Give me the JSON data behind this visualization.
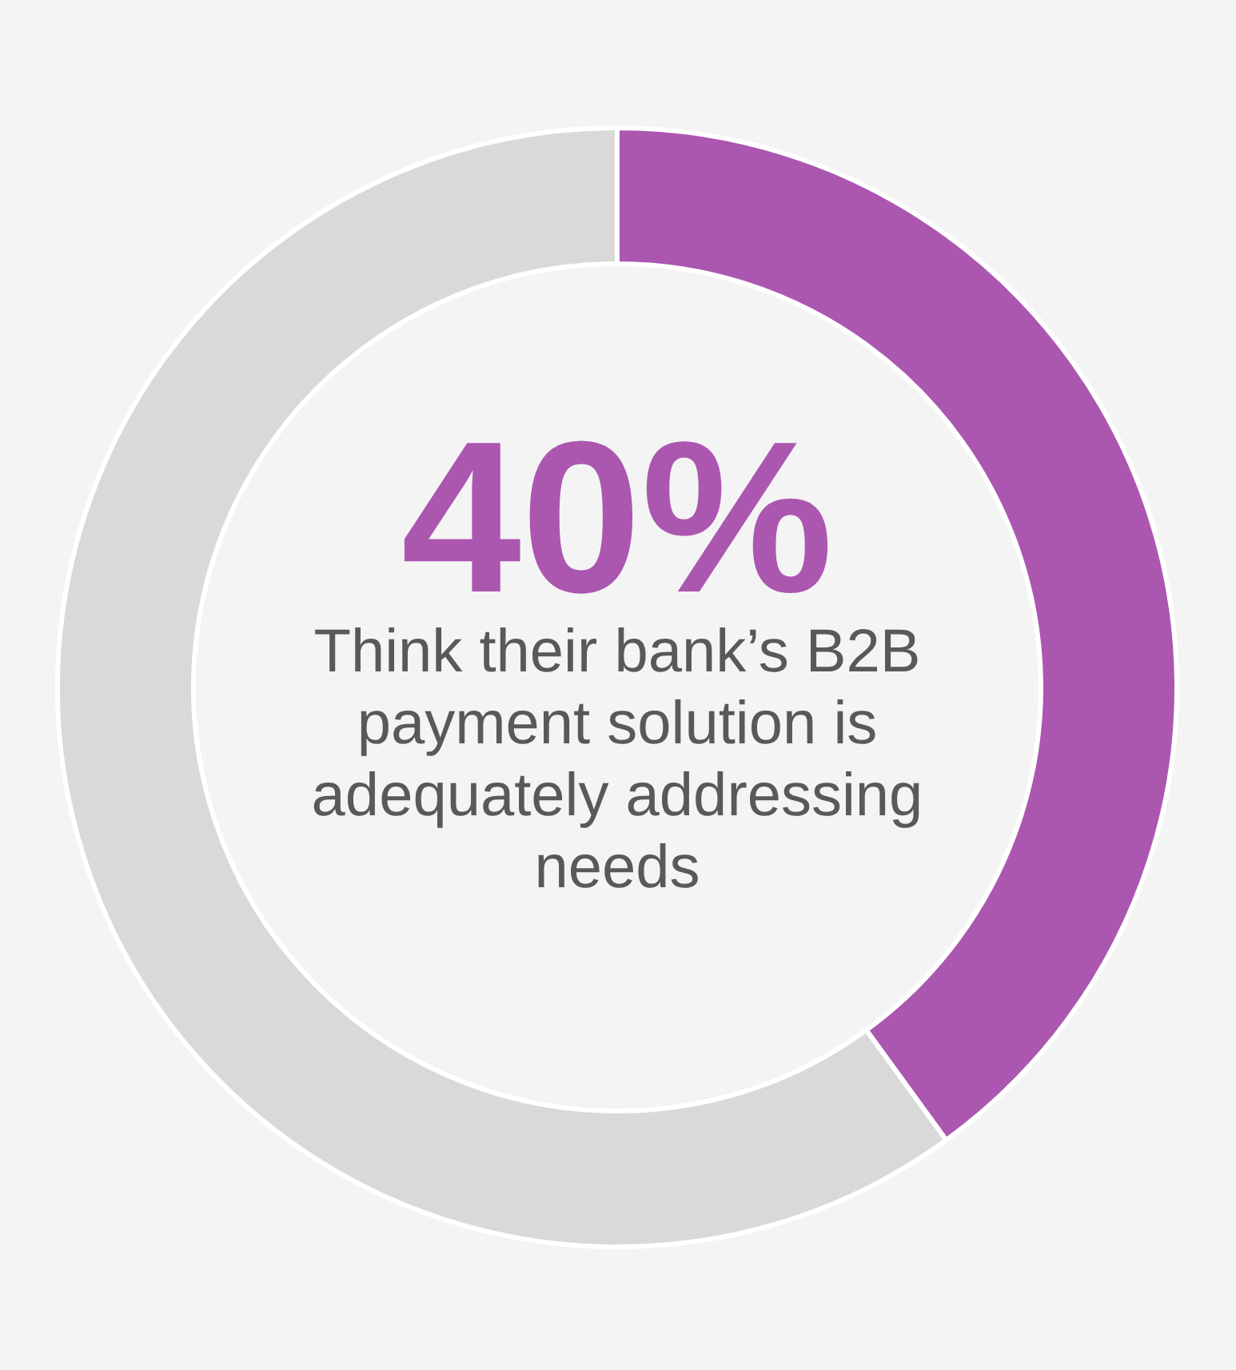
{
  "chart_data": {
    "type": "donut",
    "categories": [
      null,
      null
    ],
    "values": [
      40,
      60
    ],
    "colors": [
      "#ab57b0",
      "#d9d9d9"
    ],
    "value_labels": [
      "40%",
      null
    ],
    "annotations": [
      "Think their bank’s B2B payment solution is adequately addressing needs"
    ]
  }
}
